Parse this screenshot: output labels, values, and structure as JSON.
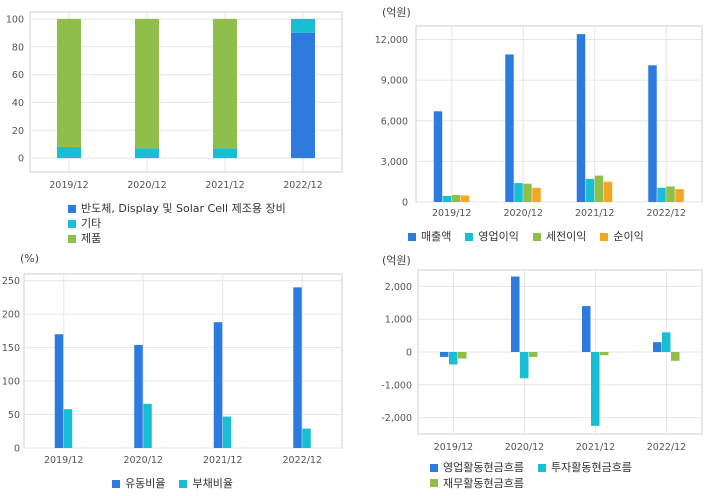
{
  "colors": {
    "blue": "#2e7be0",
    "cyan": "#18bfd4",
    "green": "#8fbf4a",
    "orange": "#f5a623",
    "grid": "#e6e6e6",
    "frame": "#cfcfcf"
  },
  "chart_data": [
    {
      "id": "composition",
      "type": "bar",
      "stacked": true,
      "title": "",
      "unit": "",
      "categories": [
        "2019/12",
        "2020/12",
        "2021/12",
        "2022/12"
      ],
      "ylim": [
        -10,
        105
      ],
      "yticks": [
        0,
        20,
        40,
        60,
        80,
        100
      ],
      "grid": true,
      "legend_position": "bottom",
      "series": [
        {
          "name": "반도체, Display 및 Solar Cell 제조용 장비",
          "color": "#2e7be0",
          "values": [
            0,
            0,
            0,
            90
          ]
        },
        {
          "name": "기타",
          "color": "#18bfd4",
          "values": [
            8,
            7,
            7,
            10
          ]
        },
        {
          "name": "제품",
          "color": "#8fbf4a",
          "values": [
            92,
            93,
            93,
            0
          ]
        }
      ]
    },
    {
      "id": "income",
      "type": "bar",
      "title": "",
      "unit": "(억원)",
      "categories": [
        "2019/12",
        "2020/12",
        "2021/12",
        "2022/12"
      ],
      "ylim": [
        0,
        13000
      ],
      "yticks": [
        0,
        3000,
        6000,
        9000,
        12000
      ],
      "ytick_labels": [
        "0",
        "3,000",
        "6,000",
        "9,000",
        "12,000"
      ],
      "grid": true,
      "legend_position": "bottom",
      "series": [
        {
          "name": "매출액",
          "color": "#2e7be0",
          "values": [
            6700,
            10900,
            12400,
            10100
          ]
        },
        {
          "name": "영업이익",
          "color": "#18bfd4",
          "values": [
            450,
            1400,
            1700,
            1050
          ]
        },
        {
          "name": "세전이익",
          "color": "#8fbf4a",
          "values": [
            520,
            1350,
            1950,
            1150
          ]
        },
        {
          "name": "순이익",
          "color": "#f5a623",
          "values": [
            480,
            1050,
            1500,
            950
          ]
        }
      ]
    },
    {
      "id": "ratios",
      "type": "bar",
      "title": "",
      "unit": "(%)",
      "categories": [
        "2019/12",
        "2020/12",
        "2021/12",
        "2022/12"
      ],
      "ylim": [
        0,
        260
      ],
      "yticks": [
        0,
        50,
        100,
        150,
        200,
        250
      ],
      "ytick_labels": [
        "0",
        "50",
        "100",
        "150",
        "200",
        "250"
      ],
      "grid": true,
      "legend_position": "bottom",
      "series": [
        {
          "name": "유동비율",
          "color": "#2e7be0",
          "values": [
            170,
            154,
            188,
            240
          ]
        },
        {
          "name": "부채비율",
          "color": "#18bfd4",
          "values": [
            58,
            66,
            47,
            29
          ]
        }
      ]
    },
    {
      "id": "cashflow",
      "type": "bar",
      "title": "",
      "unit": "(억원)",
      "categories": [
        "2019/12",
        "2020/12",
        "2021/12",
        "2022/12"
      ],
      "ylim": [
        -2500,
        2500
      ],
      "yticks": [
        -2000,
        -1000,
        0,
        1000,
        2000
      ],
      "ytick_labels": [
        "-2,000",
        "-1,000",
        "0",
        "1,000",
        "2,000"
      ],
      "grid": true,
      "legend_position": "bottom",
      "series": [
        {
          "name": "영업활동현금흐름",
          "color": "#2e7be0",
          "values": [
            -150,
            2300,
            1400,
            300
          ]
        },
        {
          "name": "투자활동현금흐름",
          "color": "#18bfd4",
          "values": [
            -380,
            -800,
            -2250,
            600
          ]
        },
        {
          "name": "재무활동현금흐름",
          "color": "#8fbf4a",
          "values": [
            -200,
            -150,
            -100,
            -270
          ]
        }
      ]
    }
  ]
}
